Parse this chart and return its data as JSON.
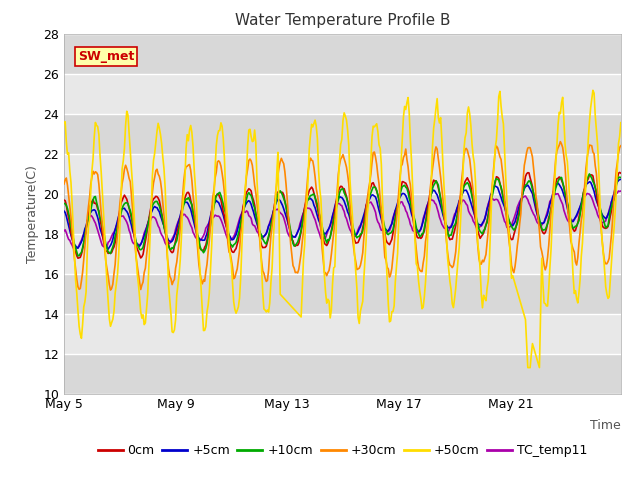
{
  "title": "Water Temperature Profile B",
  "xlabel": "Time",
  "ylabel": "Temperature(C)",
  "ylim": [
    10,
    28
  ],
  "yticks": [
    10,
    12,
    14,
    16,
    18,
    20,
    22,
    24,
    26,
    28
  ],
  "background_color": "#ffffff",
  "plot_bg_color": "#d8d8d8",
  "band_colors": [
    "#d8d8d8",
    "#e8e8e8"
  ],
  "grid_color": "#ffffff",
  "annotation_text": "SW_met",
  "annotation_bg": "#ffffaa",
  "annotation_border": "#cc0000",
  "annotation_text_color": "#cc0000",
  "series": {
    "0cm": {
      "color": "#cc0000",
      "linewidth": 1.2
    },
    "+5cm": {
      "color": "#0000cc",
      "linewidth": 1.2
    },
    "+10cm": {
      "color": "#00aa00",
      "linewidth": 1.2
    },
    "+30cm": {
      "color": "#ff8800",
      "linewidth": 1.2
    },
    "+50cm": {
      "color": "#ffdd00",
      "linewidth": 1.2
    },
    "TC_temp11": {
      "color": "#aa00aa",
      "linewidth": 1.2
    }
  },
  "date_labels": [
    "May 5",
    "May 9",
    "May 13",
    "May 17",
    "May 21"
  ],
  "date_positions": [
    0,
    96,
    192,
    288,
    384
  ],
  "total_points": 480,
  "seed": 7
}
